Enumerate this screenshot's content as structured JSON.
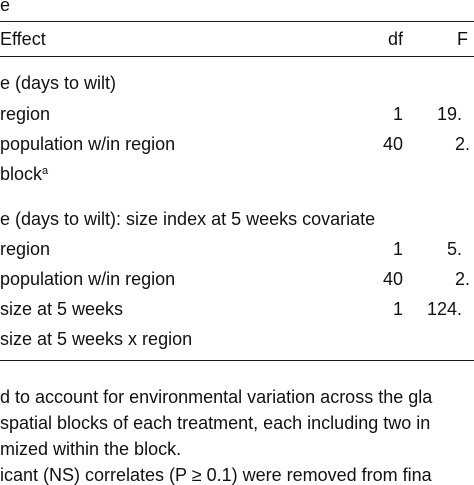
{
  "table": {
    "caption_fragment": "e",
    "headers": {
      "effect": "Effect",
      "df": "df",
      "f": "F"
    },
    "section1": {
      "title": "e (days to wilt)",
      "rows": [
        {
          "effect": "region",
          "df": "1",
          "f": "19."
        },
        {
          "effect": "population w/in region",
          "df": "40",
          "f": "2."
        },
        {
          "effect": "block",
          "sup": "a",
          "df": "",
          "f": ""
        }
      ]
    },
    "section2": {
      "title": "e (days to wilt): size index at 5 weeks covariate",
      "rows": [
        {
          "effect": "region",
          "df": "1",
          "f": "5."
        },
        {
          "effect": "population w/in region",
          "df": "40",
          "f": "2."
        },
        {
          "effect": "size at 5 weeks",
          "df": "1",
          "f": "124."
        },
        {
          "effect": "size at 5 weeks x region",
          "df": "",
          "f": ""
        }
      ]
    },
    "footnotes": [
      "d to account for environmental variation across the gla",
      "spatial blocks of each treatment, each including two in",
      "mized within the block.",
      "icant (NS) correlates (P ≥ 0.1) were removed from fina"
    ]
  }
}
